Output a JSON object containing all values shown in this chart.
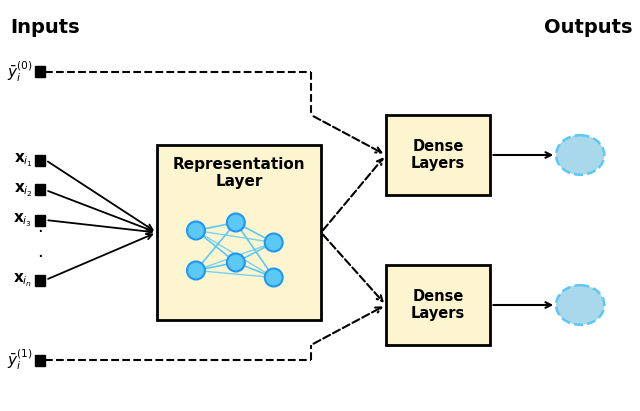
{
  "title_left": "Inputs",
  "title_right": "Outputs",
  "bg_color": "#ffffff",
  "box_rep_color": "#fdf5d0",
  "box_rep_border": "#000000",
  "box_dense_color": "#fdf5d0",
  "box_dense_border": "#000000",
  "node_color": "#5bc8f5",
  "node_edge": "#2196f3",
  "output_circle_color": "#a8d8ea",
  "output_circle_edge": "#5bc8f5",
  "arrow_color": "#000000",
  "dashed_color": "#000000",
  "input_square_color": "#000000",
  "label_y0": "$\\bar{y}_i^{(0)}$",
  "label_y1": "$\\bar{y}_i^{(1)}$",
  "label_xi1": "$\\mathbf{x}_{i_1}$",
  "label_xi2": "$\\mathbf{x}_{i_2}$",
  "label_xi3": "$\\mathbf{x}_{i_3}$",
  "label_xin": "$\\mathbf{x}_{i_n}$",
  "label_rep": "Representation\nLayer",
  "label_dense": "Dense\nLayers"
}
